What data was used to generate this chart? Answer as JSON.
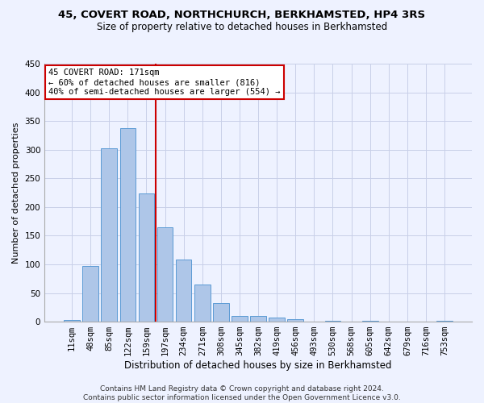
{
  "title_line1": "45, COVERT ROAD, NORTHCHURCH, BERKHAMSTED, HP4 3RS",
  "title_line2": "Size of property relative to detached houses in Berkhamsted",
  "xlabel": "Distribution of detached houses by size in Berkhamsted",
  "ylabel": "Number of detached properties",
  "footer_line1": "Contains HM Land Registry data © Crown copyright and database right 2024.",
  "footer_line2": "Contains public sector information licensed under the Open Government Licence v3.0.",
  "bar_labels": [
    "11sqm",
    "48sqm",
    "85sqm",
    "122sqm",
    "159sqm",
    "197sqm",
    "234sqm",
    "271sqm",
    "308sqm",
    "345sqm",
    "382sqm",
    "419sqm",
    "456sqm",
    "493sqm",
    "530sqm",
    "568sqm",
    "605sqm",
    "642sqm",
    "679sqm",
    "716sqm",
    "753sqm"
  ],
  "bar_values": [
    3,
    97,
    303,
    337,
    224,
    164,
    109,
    65,
    32,
    10,
    10,
    7,
    4,
    0,
    1,
    0,
    1,
    0,
    0,
    0,
    1
  ],
  "bar_color": "#aec6e8",
  "bar_edge_color": "#5b9bd5",
  "ylim": [
    0,
    450
  ],
  "yticks": [
    0,
    50,
    100,
    150,
    200,
    250,
    300,
    350,
    400,
    450
  ],
  "red_line_x": 4.5,
  "annotation_text": "45 COVERT ROAD: 171sqm\n← 60% of detached houses are smaller (816)\n40% of semi-detached houses are larger (554) →",
  "annotation_box_color": "white",
  "annotation_box_edgecolor": "#cc0000",
  "red_line_color": "#cc0000",
  "bg_color": "#eef2ff",
  "grid_color": "#c8cfe8",
  "title1_fontsize": 9.5,
  "title2_fontsize": 8.5,
  "xlabel_fontsize": 8.5,
  "ylabel_fontsize": 8,
  "tick_fontsize": 7.5,
  "annot_fontsize": 7.5,
  "footer_fontsize": 6.5
}
